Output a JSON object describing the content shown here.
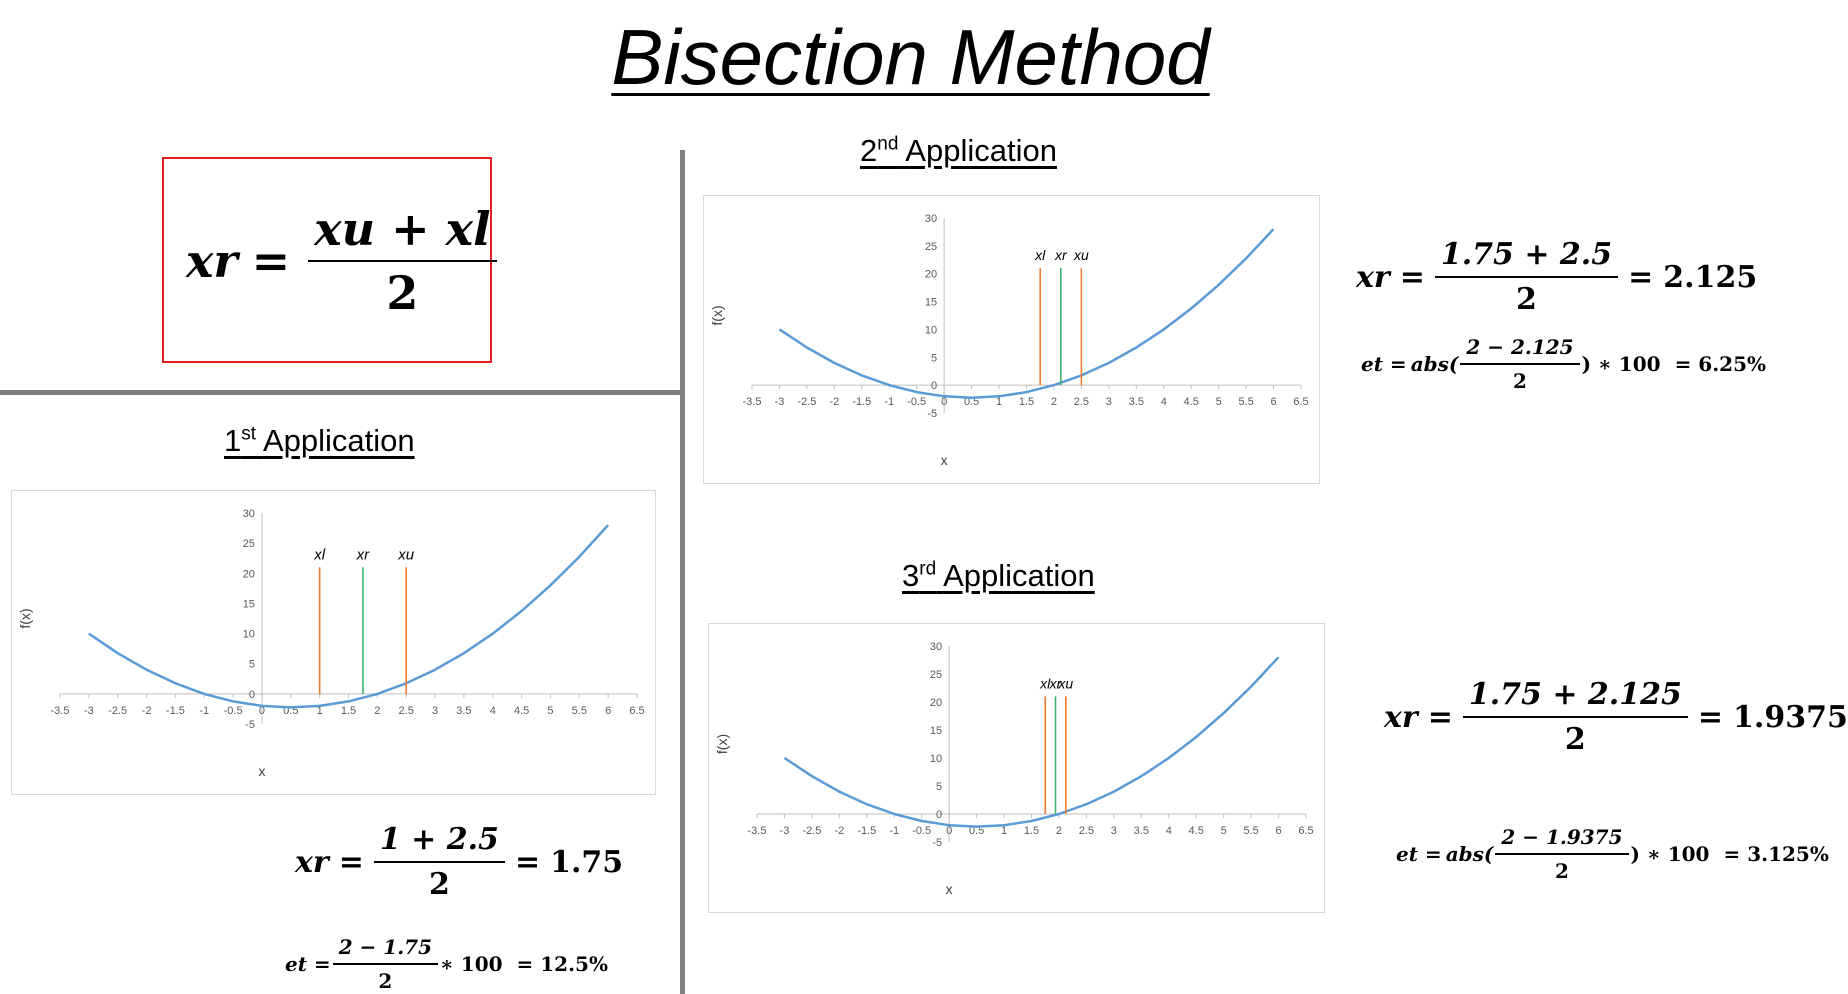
{
  "title": "Bisection Method",
  "main_formula": {
    "lhs": "xr",
    "num": "xu + xl",
    "den": "2"
  },
  "axis_labels": {
    "x": "x",
    "y": "f(x)"
  },
  "applications": [
    {
      "ordinal": "1",
      "suffix": "st",
      "label": "Application",
      "markers": [
        "xl",
        "xr",
        "xu"
      ],
      "xr_formula": {
        "lhs": "xr",
        "num": "1 + 2.5",
        "den": "2",
        "result": "1.75"
      },
      "et_formula": {
        "lhs": "et =",
        "func": "",
        "num": "2 − 1.75",
        "den": "2",
        "tail": "∗ 100",
        "result": "= 12.5%"
      }
    },
    {
      "ordinal": "2",
      "suffix": "nd",
      "label": "Application",
      "markers": [
        "xl",
        "xr",
        "xu"
      ],
      "xr_formula": {
        "lhs": "xr",
        "num": "1.75 + 2.5",
        "den": "2",
        "result": "2.125"
      },
      "et_formula": {
        "lhs": "et =",
        "func": "abs(",
        "num": "2 − 2.125",
        "den": "2",
        "tail": ") ∗ 100",
        "result": "= 6.25%"
      }
    },
    {
      "ordinal": "3",
      "suffix": "rd",
      "label": "Application",
      "markers": [
        "xl",
        "xr",
        "xu"
      ],
      "xr_formula": {
        "lhs": "xr",
        "num": "1.75 + 2.125",
        "den": "2",
        "result": "1.9375"
      },
      "et_formula": {
        "lhs": "et =",
        "func": "abs(",
        "num": "2 − 1.9375",
        "den": "2",
        "tail": ") ∗ 100",
        "result": "= 3.125%"
      }
    }
  ],
  "colors": {
    "curve": "#5b9bd5",
    "bound_line": "#ed7d31",
    "midpoint_line": "#3cb371",
    "axis": "#bfbfbf",
    "tick_text": "#595959",
    "box_border": "#e02020",
    "divider": "#7f7f7f"
  },
  "chart_data": [
    {
      "type": "line",
      "xlabel": "x",
      "ylabel": "f(x)",
      "xlim": [
        -3.5,
        6.5
      ],
      "ylim": [
        -5,
        30
      ],
      "xticks": [
        "-3.5",
        "-3",
        "-2.5",
        "-2",
        "-1.5",
        "-1",
        "-0.5",
        "0",
        "0.5",
        "1",
        "1.5",
        "2",
        "2.5",
        "3",
        "3.5",
        "4",
        "4.5",
        "5",
        "5.5",
        "6",
        "6.5"
      ],
      "yticks": [
        "-5",
        "0",
        "5",
        "10",
        "15",
        "20",
        "25",
        "30"
      ],
      "grid": false,
      "curve": {
        "x": [
          -3,
          -2.5,
          -2,
          -1.5,
          -1,
          -0.5,
          0,
          0.5,
          1,
          1.5,
          2,
          2.5,
          3,
          3.5,
          4,
          4.5,
          5,
          5.5,
          6
        ],
        "y": [
          10,
          6.75,
          4,
          1.75,
          0,
          -1.25,
          -2,
          -2.25,
          -2,
          -1.25,
          0,
          1.75,
          4,
          6.75,
          10,
          13.75,
          18,
          22.75,
          28
        ]
      },
      "vertical_lines": [
        {
          "label": "xl",
          "x": 1,
          "color": "#ed7d31"
        },
        {
          "label": "xr",
          "x": 1.75,
          "color": "#3cb371"
        },
        {
          "label": "xu",
          "x": 2.5,
          "color": "#ed7d31"
        }
      ],
      "line_top": 21
    },
    {
      "type": "line",
      "xlabel": "x",
      "ylabel": "f(x)",
      "xlim": [
        -3.5,
        6.5
      ],
      "ylim": [
        -5,
        30
      ],
      "xticks": [
        "-3.5",
        "-3",
        "-2.5",
        "-2",
        "-1.5",
        "-1",
        "-0.5",
        "0",
        "0.5",
        "1",
        "1.5",
        "2",
        "2.5",
        "3",
        "3.5",
        "4",
        "4.5",
        "5",
        "5.5",
        "6",
        "6.5"
      ],
      "yticks": [
        "-5",
        "0",
        "5",
        "10",
        "15",
        "20",
        "25",
        "30"
      ],
      "grid": false,
      "curve": {
        "x": [
          -3,
          -2.5,
          -2,
          -1.5,
          -1,
          -0.5,
          0,
          0.5,
          1,
          1.5,
          2,
          2.5,
          3,
          3.5,
          4,
          4.5,
          5,
          5.5,
          6
        ],
        "y": [
          10,
          6.75,
          4,
          1.75,
          0,
          -1.25,
          -2,
          -2.25,
          -2,
          -1.25,
          0,
          1.75,
          4,
          6.75,
          10,
          13.75,
          18,
          22.75,
          28
        ]
      },
      "vertical_lines": [
        {
          "label": "xl",
          "x": 1.75,
          "color": "#ed7d31"
        },
        {
          "label": "xr",
          "x": 2.125,
          "color": "#3cb371"
        },
        {
          "label": "xu",
          "x": 2.5,
          "color": "#ed7d31"
        }
      ],
      "line_top": 21
    },
    {
      "type": "line",
      "xlabel": "x",
      "ylabel": "f(x)",
      "xlim": [
        -3.5,
        6.5
      ],
      "ylim": [
        -5,
        30
      ],
      "xticks": [
        "-3.5",
        "-3",
        "-2.5",
        "-2",
        "-1.5",
        "-1",
        "-0.5",
        "0",
        "0.5",
        "1",
        "1.5",
        "2",
        "2.5",
        "3",
        "3.5",
        "4",
        "4.5",
        "5",
        "5.5",
        "6",
        "6.5"
      ],
      "yticks": [
        "-5",
        "0",
        "5",
        "10",
        "15",
        "20",
        "25",
        "30"
      ],
      "grid": false,
      "curve": {
        "x": [
          -3,
          -2.5,
          -2,
          -1.5,
          -1,
          -0.5,
          0,
          0.5,
          1,
          1.5,
          2,
          2.5,
          3,
          3.5,
          4,
          4.5,
          5,
          5.5,
          6
        ],
        "y": [
          10,
          6.75,
          4,
          1.75,
          0,
          -1.25,
          -2,
          -2.25,
          -2,
          -1.25,
          0,
          1.75,
          4,
          6.75,
          10,
          13.75,
          18,
          22.75,
          28
        ]
      },
      "vertical_lines": [
        {
          "label": "xl",
          "x": 1.75,
          "color": "#ed7d31"
        },
        {
          "label": "xr",
          "x": 1.9375,
          "color": "#3cb371"
        },
        {
          "label": "xu",
          "x": 2.125,
          "color": "#ed7d31"
        }
      ],
      "line_top": 21
    }
  ]
}
